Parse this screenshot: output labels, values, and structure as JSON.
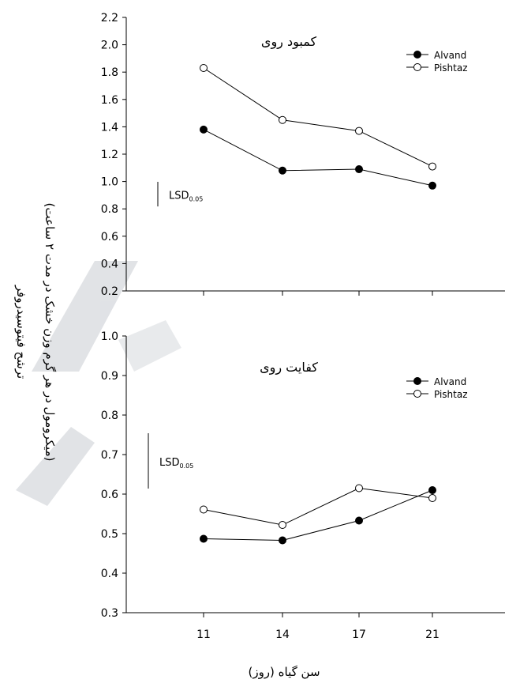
{
  "shared": {
    "ylabel_line1": "ترشح فیتوسیدروفر",
    "ylabel_line2": "(میکرومول در هر گرم وزن خشک در مدت ۲ ساعت)",
    "xlabel": "سن گیاه (روز)",
    "colors": {
      "line": "#000000",
      "alvand_fill": "#000000",
      "pishtaz_fill": "#ffffff",
      "watermark": "#c8ccd2"
    }
  },
  "chart_data": [
    {
      "type": "line",
      "title": "کمبود روی",
      "categories": [
        "11",
        "14",
        "17",
        "21"
      ],
      "series": [
        {
          "name": "Alvand",
          "marker": "filled-circle",
          "values": [
            1.38,
            1.08,
            1.09,
            0.97
          ]
        },
        {
          "name": "Pishtaz",
          "marker": "open-circle",
          "values": [
            1.83,
            1.45,
            1.37,
            1.11
          ]
        }
      ],
      "ylim": [
        0.2,
        2.2
      ],
      "yticks": [
        "0.2",
        "0.4",
        "0.6",
        "0.8",
        "1.0",
        "1.2",
        "1.4",
        "1.6",
        "1.8",
        "2.0",
        "2.2"
      ],
      "yticks_values": [
        0.2,
        0.4,
        0.6,
        0.8,
        1.0,
        1.2,
        1.4,
        1.6,
        1.8,
        2.0,
        2.2
      ],
      "show_xtick_labels": false,
      "lsd": {
        "label": "LSD",
        "subscript": "0.05",
        "value": 0.18
      },
      "legend": "top-right",
      "grid": false
    },
    {
      "type": "line",
      "title": "کفایت روی",
      "categories": [
        "11",
        "14",
        "17",
        "21"
      ],
      "series": [
        {
          "name": "Alvand",
          "marker": "filled-circle",
          "values": [
            0.487,
            0.483,
            0.533,
            0.61
          ]
        },
        {
          "name": "Pishtaz",
          "marker": "open-circle",
          "values": [
            0.561,
            0.522,
            0.615,
            0.59
          ]
        }
      ],
      "ylim": [
        0.3,
        1.0
      ],
      "yticks": [
        "0.3",
        "0.4",
        "0.5",
        "0.6",
        "0.7",
        "0.8",
        "0.9",
        "1.0"
      ],
      "yticks_values": [
        0.3,
        0.4,
        0.5,
        0.6,
        0.7,
        0.8,
        0.9,
        1.0
      ],
      "show_xtick_labels": true,
      "lsd": {
        "label": "LSD",
        "subscript": "0.05",
        "value": 0.14
      },
      "legend": "top-right",
      "grid": false
    }
  ]
}
